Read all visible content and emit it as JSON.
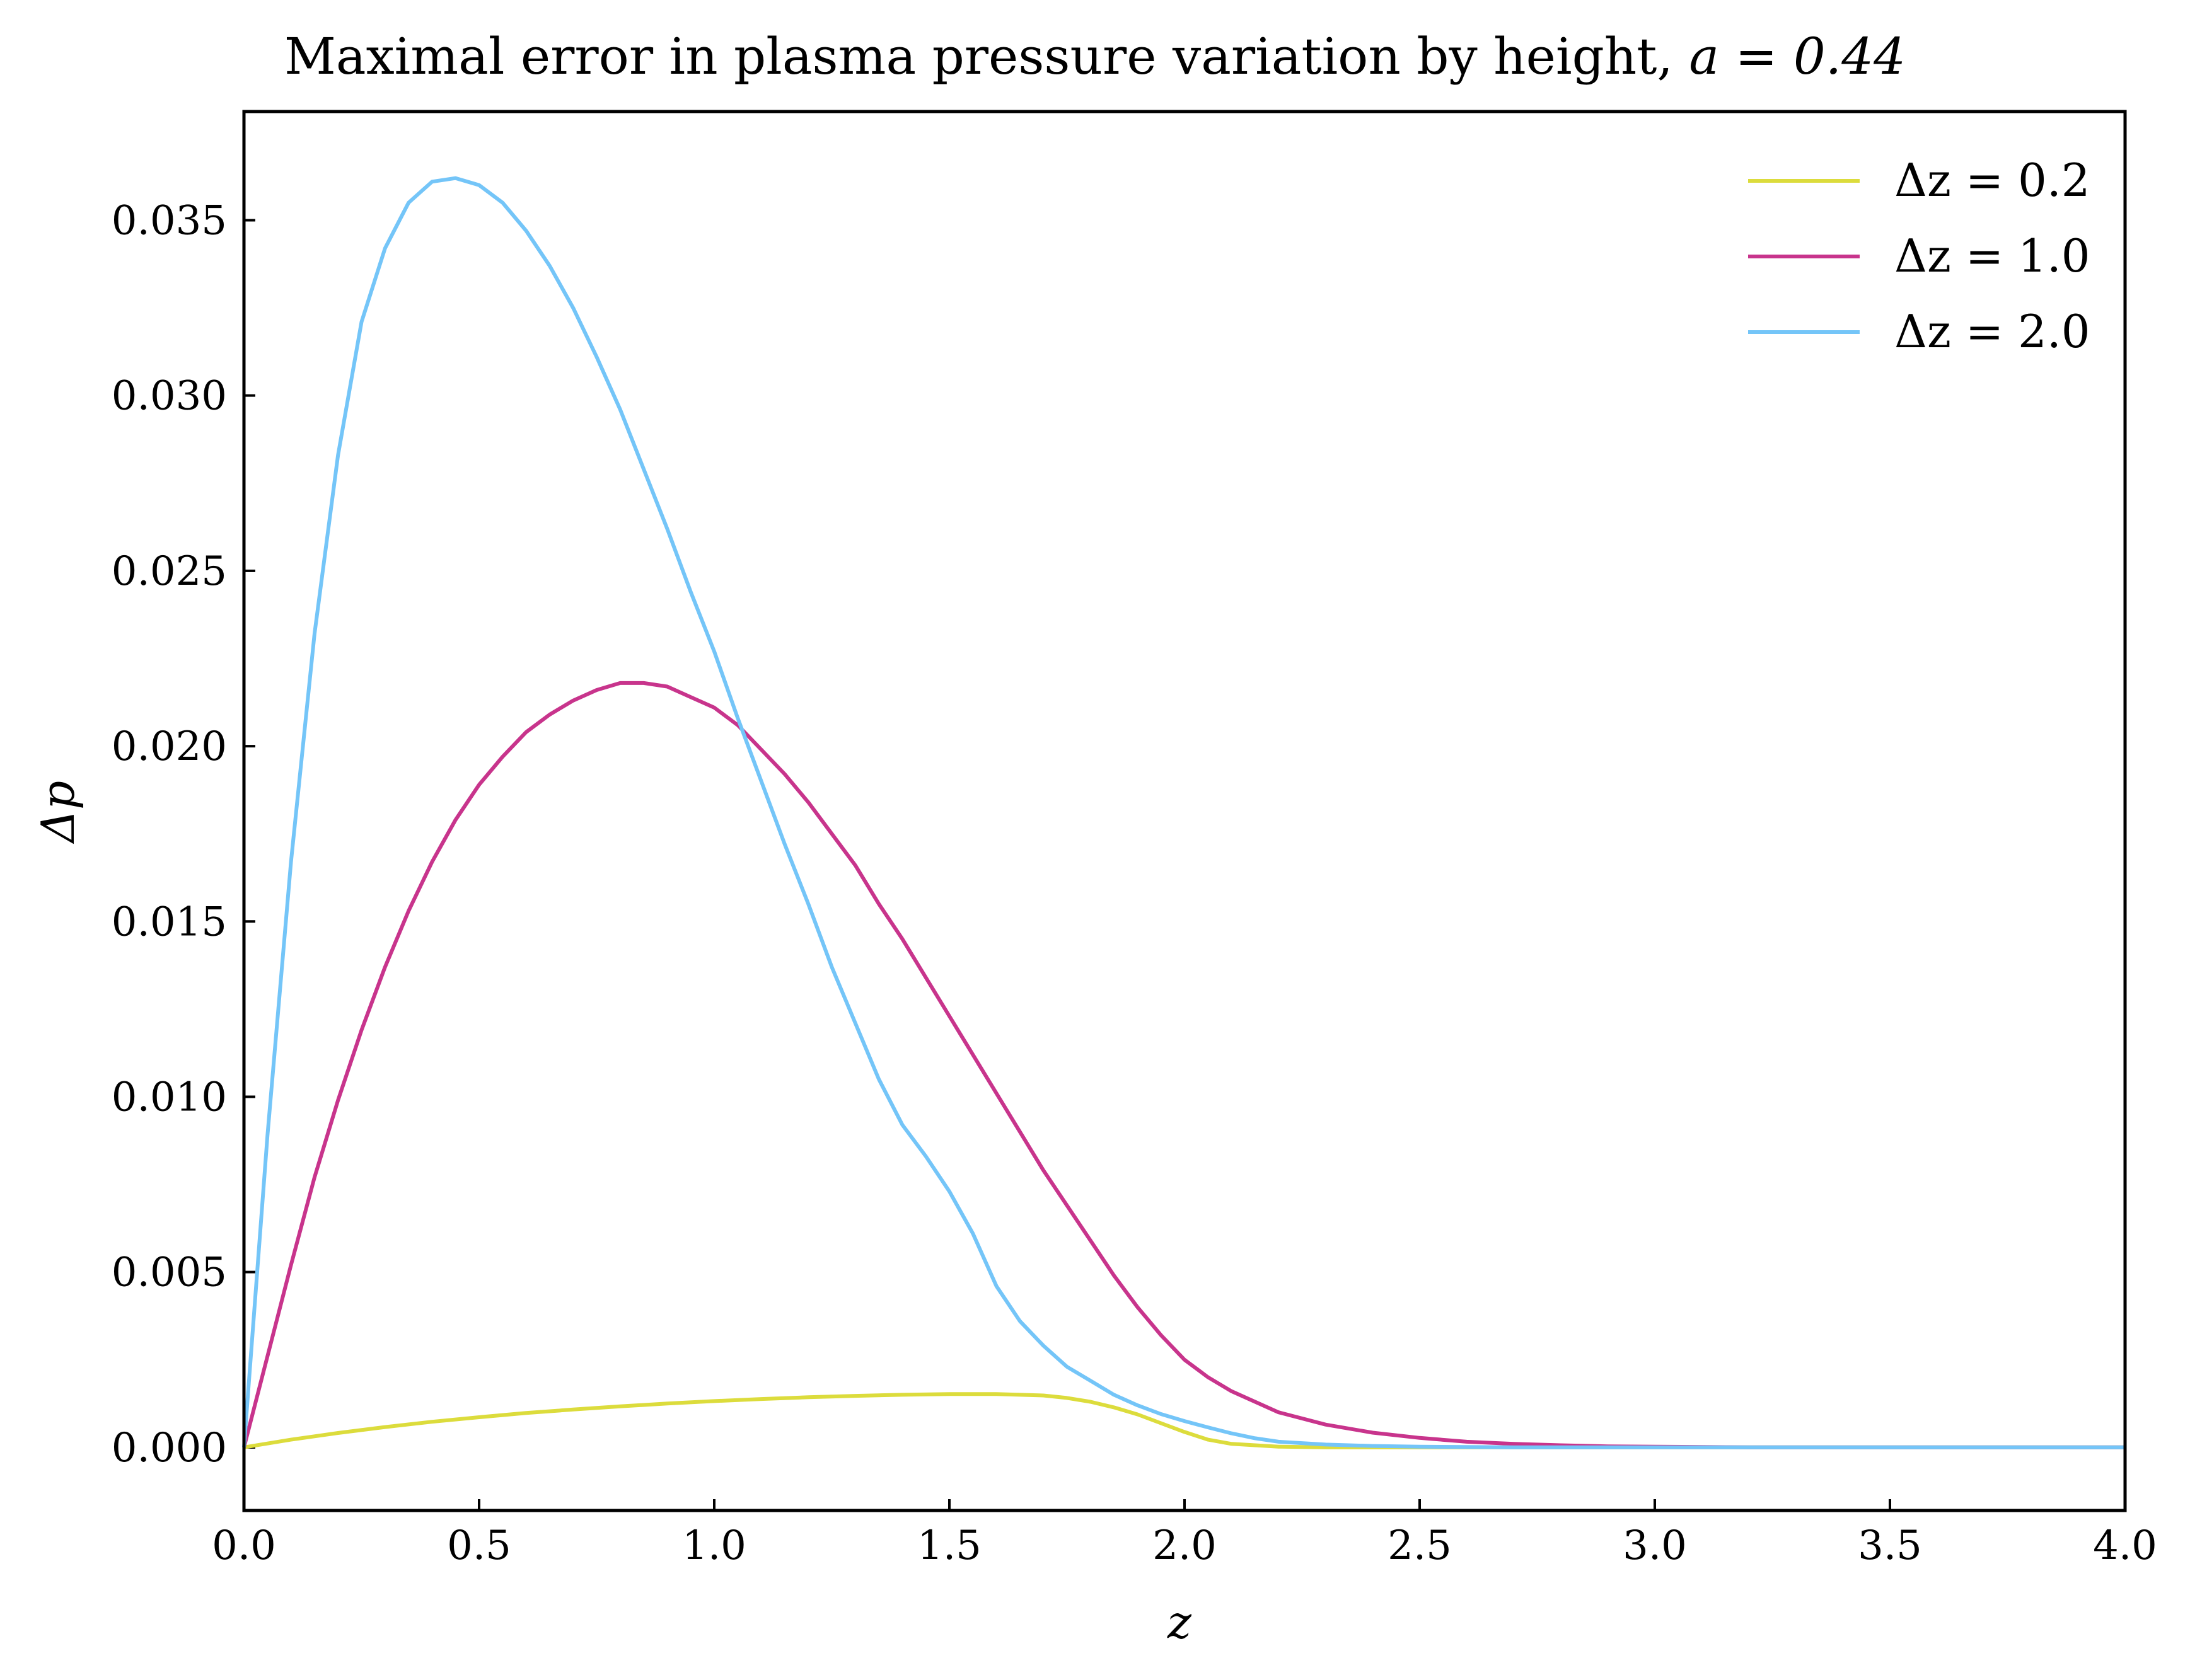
{
  "chart_data": {
    "type": "line",
    "title": "Maximal error in plasma pressure variation by height, ",
    "title_math": "a = 0.44",
    "xlabel": "z",
    "ylabel": "Δp",
    "xlim": [
      0.0,
      4.0
    ],
    "ylim": [
      -0.0018,
      0.0381
    ],
    "x_ticks": [
      0.0,
      0.5,
      1.0,
      1.5,
      2.0,
      2.5,
      3.0,
      3.5,
      4.0
    ],
    "x_tick_labels": [
      "0.0",
      "0.5",
      "1.0",
      "1.5",
      "2.0",
      "2.5",
      "3.0",
      "3.5",
      "4.0"
    ],
    "y_ticks": [
      0.0,
      0.005,
      0.01,
      0.015,
      0.02,
      0.025,
      0.03,
      0.035
    ],
    "y_tick_labels": [
      "0.000",
      "0.005",
      "0.010",
      "0.015",
      "0.020",
      "0.025",
      "0.030",
      "0.035"
    ],
    "grid": false,
    "legend_position": "top-right",
    "series": [
      {
        "name": "Δz = 0.2",
        "color": "#dcdc3c",
        "x": [
          0.0,
          0.1,
          0.2,
          0.3,
          0.4,
          0.5,
          0.6,
          0.7,
          0.8,
          0.9,
          1.0,
          1.1,
          1.2,
          1.3,
          1.4,
          1.5,
          1.6,
          1.7,
          1.75,
          1.8,
          1.85,
          1.9,
          1.95,
          2.0,
          2.05,
          2.1,
          2.2,
          2.3,
          2.5,
          3.0,
          4.0
        ],
        "y": [
          0.0,
          0.00022,
          0.00041,
          0.00058,
          0.00073,
          0.00086,
          0.00098,
          0.00108,
          0.00117,
          0.00125,
          0.00132,
          0.00138,
          0.00143,
          0.00147,
          0.0015,
          0.00152,
          0.00152,
          0.00148,
          0.00141,
          0.0013,
          0.00114,
          0.00094,
          0.00069,
          0.00044,
          0.00022,
          0.0001,
          2e-05,
          0.0,
          0.0,
          0.0,
          0.0
        ]
      },
      {
        "name": "Δz = 1.0",
        "color": "#c8348c",
        "x": [
          0.0,
          0.05,
          0.1,
          0.15,
          0.2,
          0.25,
          0.3,
          0.35,
          0.4,
          0.45,
          0.5,
          0.55,
          0.6,
          0.65,
          0.7,
          0.75,
          0.8,
          0.85,
          0.9,
          0.95,
          1.0,
          1.05,
          1.1,
          1.15,
          1.2,
          1.25,
          1.3,
          1.35,
          1.4,
          1.45,
          1.5,
          1.55,
          1.6,
          1.65,
          1.7,
          1.75,
          1.8,
          1.85,
          1.9,
          1.95,
          2.0,
          2.05,
          2.1,
          2.15,
          2.2,
          2.3,
          2.4,
          2.5,
          2.6,
          2.7,
          2.8,
          2.9,
          3.0,
          3.2,
          3.5,
          4.0
        ],
        "y": [
          0.0,
          0.0026,
          0.0052,
          0.0077,
          0.0099,
          0.0119,
          0.0137,
          0.0153,
          0.0167,
          0.0179,
          0.0189,
          0.0197,
          0.0204,
          0.0209,
          0.0213,
          0.0216,
          0.0218,
          0.0218,
          0.0217,
          0.0214,
          0.0211,
          0.0206,
          0.0199,
          0.0192,
          0.0184,
          0.0175,
          0.0166,
          0.0155,
          0.0145,
          0.0134,
          0.0123,
          0.0112,
          0.0101,
          0.009,
          0.0079,
          0.0069,
          0.0059,
          0.0049,
          0.004,
          0.0032,
          0.0025,
          0.002,
          0.0016,
          0.0013,
          0.001,
          0.00065,
          0.00042,
          0.00027,
          0.00016,
          0.0001,
          6e-05,
          3e-05,
          2e-05,
          0.0,
          0.0,
          0.0
        ]
      },
      {
        "name": "Δz = 2.0",
        "color": "#74c5f8",
        "x": [
          0.0,
          0.05,
          0.1,
          0.15,
          0.2,
          0.25,
          0.3,
          0.35,
          0.4,
          0.45,
          0.5,
          0.55,
          0.6,
          0.65,
          0.7,
          0.75,
          0.8,
          0.85,
          0.9,
          0.95,
          1.0,
          1.05,
          1.1,
          1.15,
          1.2,
          1.25,
          1.3,
          1.35,
          1.4,
          1.45,
          1.5,
          1.55,
          1.6,
          1.65,
          1.7,
          1.75,
          1.8,
          1.85,
          1.9,
          1.95,
          2.0,
          2.05,
          2.1,
          2.15,
          2.2,
          2.3,
          2.4,
          2.5,
          2.6,
          2.7,
          2.8,
          2.9,
          3.0,
          3.2,
          3.5,
          4.0
        ],
        "y": [
          0.0,
          0.0089,
          0.0167,
          0.0232,
          0.0283,
          0.0321,
          0.0342,
          0.0355,
          0.0361,
          0.0362,
          0.036,
          0.0355,
          0.0347,
          0.0337,
          0.0325,
          0.0311,
          0.0296,
          0.0279,
          0.0262,
          0.0244,
          0.0227,
          0.0208,
          0.019,
          0.0172,
          0.0155,
          0.0137,
          0.0121,
          0.0105,
          0.0092,
          0.0083,
          0.0073,
          0.0061,
          0.0046,
          0.0036,
          0.0029,
          0.0023,
          0.0019,
          0.0015,
          0.0012,
          0.00095,
          0.00075,
          0.00057,
          0.0004,
          0.00026,
          0.00016,
          8e-05,
          4e-05,
          2e-05,
          1e-05,
          0.0,
          0.0,
          0.0,
          0.0,
          0.0,
          0.0,
          0.0
        ]
      }
    ]
  }
}
